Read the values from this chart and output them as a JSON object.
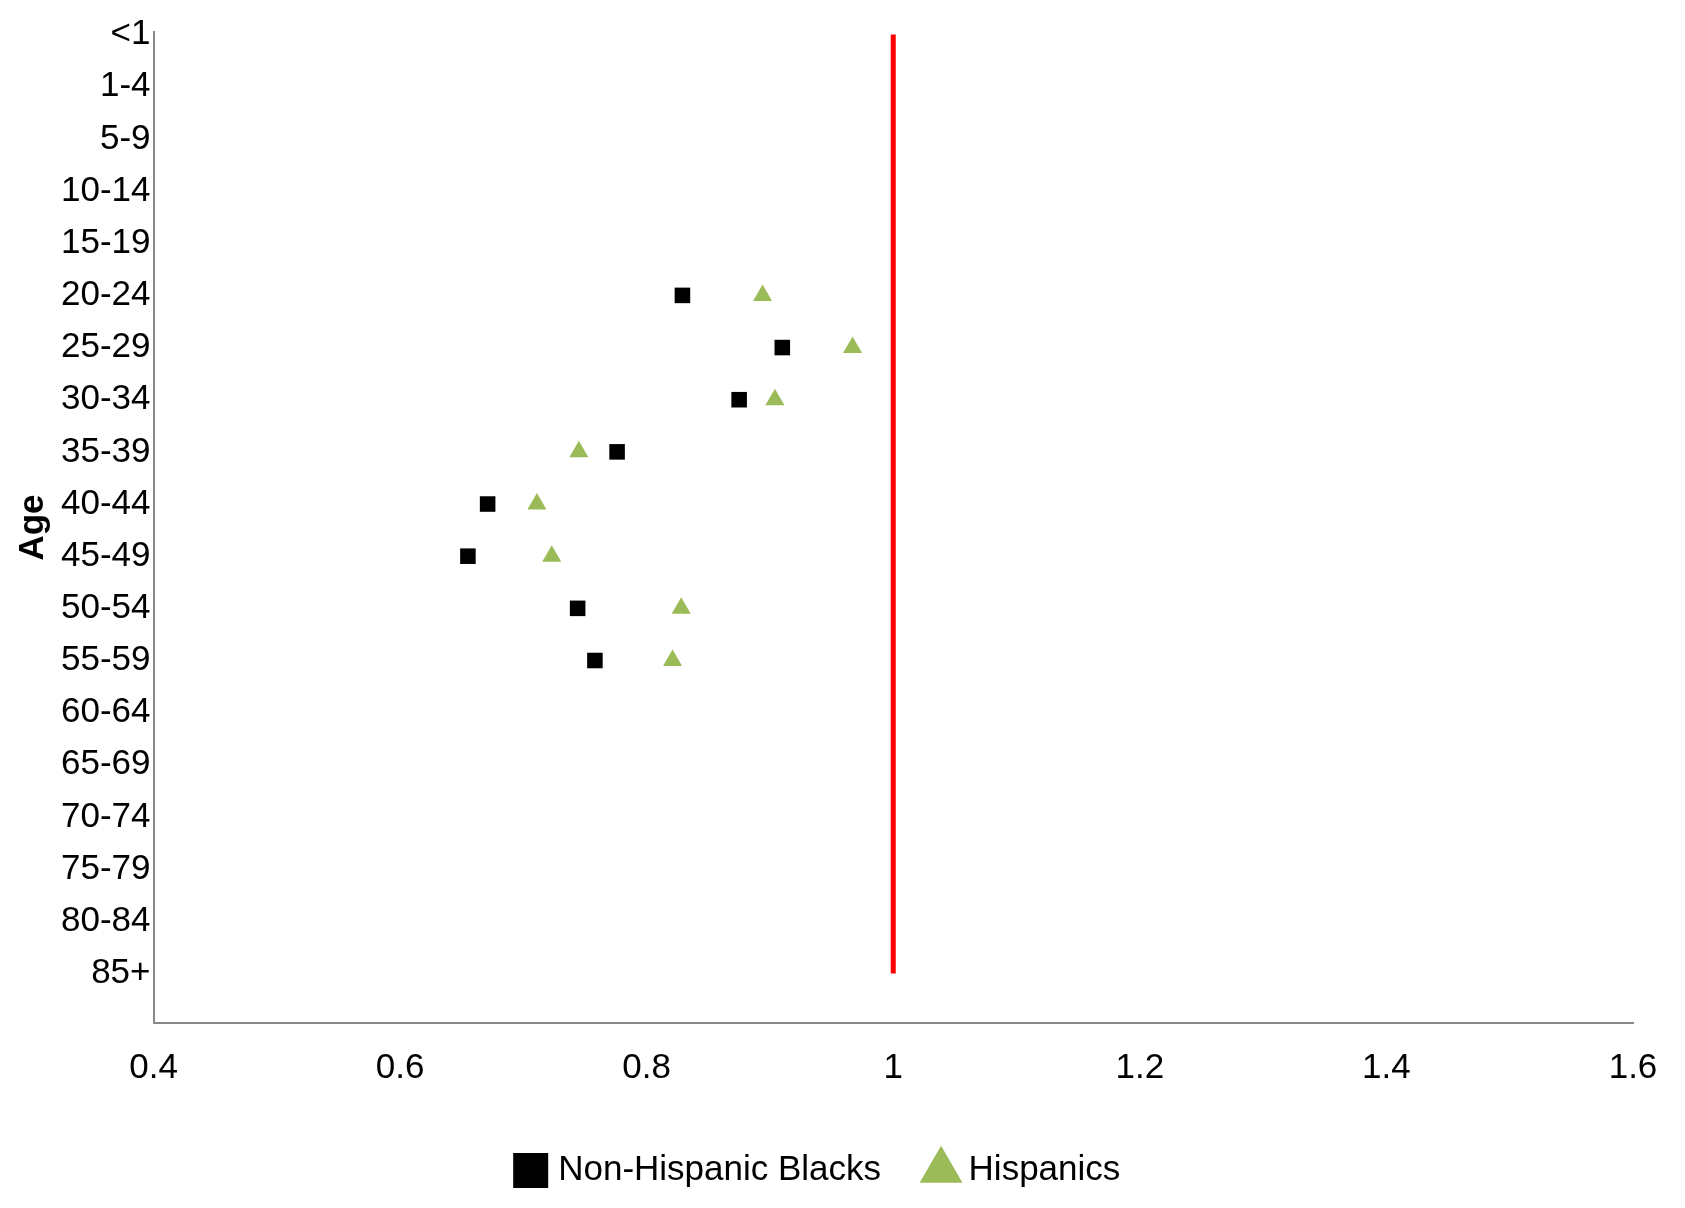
{
  "chart_data": {
    "type": "scatter",
    "orientation": "horizontal",
    "ylabel": "Age",
    "categories": [
      "<1",
      "1-4",
      "5-9",
      "10-14",
      "15-19",
      "20-24",
      "25-29",
      "30-34",
      "35-39",
      "40-44",
      "45-49",
      "50-54",
      "55-59",
      "60-64",
      "65-69",
      "70-74",
      "75-79",
      "80-84",
      "85+"
    ],
    "series": [
      {
        "name": "Non-Hispanic Blacks",
        "color": "#000000",
        "marker": "square",
        "values": [
          null,
          null,
          null,
          null,
          null,
          0.829,
          0.91,
          0.875,
          0.776,
          0.671,
          0.655,
          0.744,
          0.758,
          null,
          null,
          null,
          null,
          null,
          null
        ]
      },
      {
        "name": "Hispanics",
        "color": "#9bbb59",
        "marker": "triangle",
        "values": [
          null,
          null,
          null,
          null,
          null,
          0.894,
          0.967,
          0.904,
          0.745,
          0.711,
          0.723,
          0.828,
          0.821,
          null,
          null,
          null,
          null,
          null,
          null
        ]
      }
    ],
    "xlim": [
      0.4,
      1.6
    ],
    "xticks": [
      0.4,
      0.6,
      0.8,
      1,
      1.2,
      1.4,
      1.6
    ],
    "ref_lines": [
      {
        "axis": "x",
        "value": 1,
        "color": "#ff0000"
      }
    ],
    "grid": false,
    "legend": "bottom"
  }
}
